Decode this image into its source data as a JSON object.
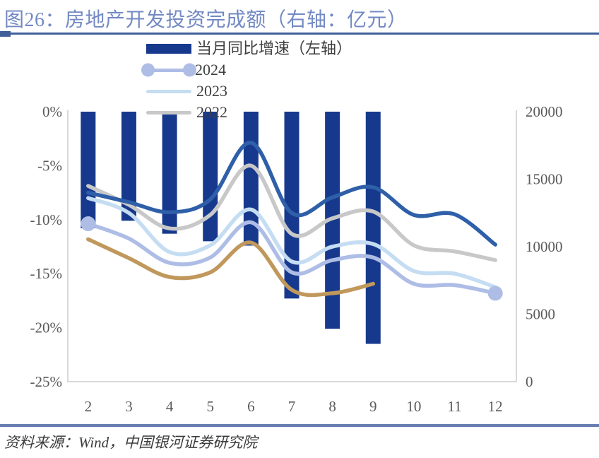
{
  "header": {
    "title": "图26：房地产开发投资完成额（右轴：亿元）"
  },
  "footer": {
    "source": "资料来源：Wind，中国银河证券研究院"
  },
  "legend": [
    {
      "label": "当月同比增速（左轴）",
      "type": "bar",
      "color": "#17398d"
    },
    {
      "label": "2024",
      "type": "line-dots",
      "color": "#aebde6"
    },
    {
      "label": "2023",
      "type": "line",
      "color": "#c5ddf2"
    },
    {
      "label": "2022",
      "type": "line",
      "color": "#c8c8c8"
    }
  ],
  "chart_data": {
    "type": "combo-bar-line",
    "title": "图26：房地产开发投资完成额（右轴：亿元）",
    "categories": [
      2,
      3,
      4,
      5,
      6,
      7,
      8,
      9,
      10,
      11,
      12
    ],
    "grid": false,
    "left_axis": {
      "ticks": [
        "0%",
        "-5%",
        "-10%",
        "-15%",
        "-20%",
        "-25%"
      ],
      "range": [
        0,
        -25
      ]
    },
    "right_axis": {
      "ticks": [
        "20000",
        "15000",
        "10000",
        "5000",
        "0"
      ],
      "range": [
        0,
        20000
      ]
    },
    "bar_series": {
      "name": "当月同比增速（左轴）",
      "axis": "left",
      "color": "#17398d",
      "values": [
        -10.8,
        -10.1,
        -11.3,
        -12.0,
        -12.4,
        -17.3,
        -20.1,
        -21.5,
        null,
        null,
        null
      ]
    },
    "line_series": [
      {
        "name": "series-tan-unlabeled",
        "axis": "right",
        "color": "#c0985c",
        "markers": "none",
        "values": [
          10550,
          9150,
          7750,
          8100,
          10300,
          6800,
          6550,
          7250,
          null,
          null,
          null
        ]
      },
      {
        "name": "2022",
        "axis": "right",
        "color": "#c8c8c8",
        "markers": "none",
        "values": [
          14500,
          13100,
          11350,
          12350,
          16000,
          10950,
          12100,
          12600,
          10100,
          9650,
          9000
        ]
      },
      {
        "name": "2023",
        "axis": "right",
        "color": "#c5ddf2",
        "markers": "none",
        "values": [
          13600,
          12500,
          9600,
          10100,
          12750,
          8900,
          10000,
          10200,
          8200,
          8000,
          7000
        ]
      },
      {
        "name": "2024",
        "axis": "right",
        "color": "#aebde6",
        "markers": "ends",
        "values": [
          11700,
          10600,
          8800,
          9200,
          11800,
          8100,
          9000,
          9200,
          7250,
          7150,
          6550
        ]
      },
      {
        "name": "series-dark-blue-unlabeled",
        "axis": "right",
        "color": "#2e5fa8",
        "markers": "none",
        "values": [
          14000,
          13300,
          12550,
          13500,
          17700,
          12500,
          13650,
          14400,
          12350,
          12400,
          10150
        ]
      }
    ]
  }
}
